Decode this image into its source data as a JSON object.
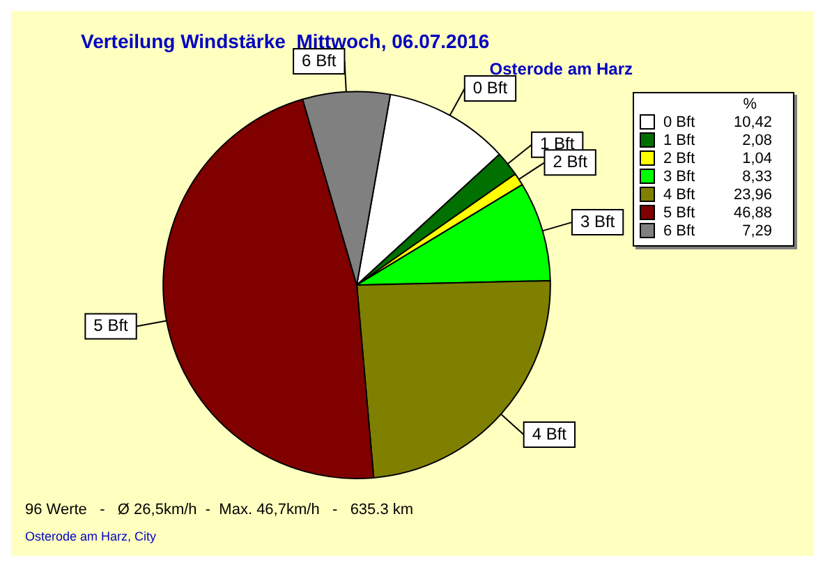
{
  "chart_data": {
    "type": "pie",
    "title": "Verteilung Windstärke  Mittwoch, 06.07.2016",
    "subtitle": "Osterode am Harz",
    "legend_title": "%",
    "legend": "top right",
    "categories": [
      "0 Bft",
      "1 Bft",
      "2 Bft",
      "3 Bft",
      "4 Bft",
      "5 Bft",
      "6 Bft"
    ],
    "values": [
      10.42,
      2.08,
      1.04,
      8.33,
      23.96,
      46.88,
      7.29
    ],
    "value_labels": [
      "10,42",
      "2,08",
      "1,04",
      "8,33",
      "23,96",
      "46,88",
      "7,29"
    ],
    "colors": [
      "#ffffff",
      "#007000",
      "#ffff00",
      "#00ff00",
      "#808000",
      "#800000",
      "#808080"
    ],
    "annotations": [
      "96 Werte   -   Ø 26,5km/h  -  Max. 46,7km/h   -   635.3 km",
      "Osterode am Harz, City"
    ]
  }
}
